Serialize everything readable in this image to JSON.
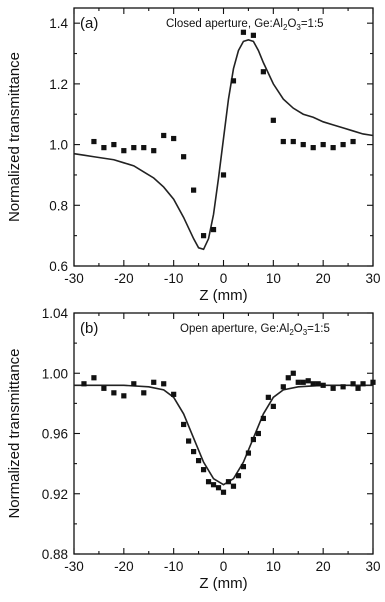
{
  "chart_data": [
    {
      "type": "scatter",
      "panel_label": "(a)",
      "annotation": "Closed aperture, Ge:Al",
      "annotation_sub1": "2",
      "annotation_mid": "O",
      "annotation_sub2": "3",
      "annotation_tail": "=1:5",
      "xlabel": "Z (mm)",
      "ylabel": "Normalized transmittance",
      "xlim": [
        -30,
        30
      ],
      "ylim": [
        0.6,
        1.45
      ],
      "xticks": [
        -30,
        -20,
        -10,
        0,
        10,
        20,
        30
      ],
      "yticks": [
        0.6,
        0.8,
        1.0,
        1.2,
        1.4
      ],
      "ytick_labels": [
        "0.6",
        "0.8",
        "1.0",
        "1.2",
        "1.4"
      ],
      "grid": false,
      "series": [
        {
          "kind": "points",
          "x": [
            -26,
            -24,
            -22,
            -20,
            -18,
            -16,
            -14,
            -12,
            -10,
            -8,
            -6,
            -4,
            -2,
            0,
            2,
            4,
            6,
            8,
            10,
            12,
            14,
            16,
            18,
            20,
            22,
            24,
            26
          ],
          "y": [
            1.01,
            0.99,
            1.0,
            0.98,
            0.99,
            0.99,
            0.98,
            1.03,
            1.02,
            0.96,
            0.85,
            0.7,
            0.72,
            0.9,
            1.21,
            1.37,
            1.36,
            1.24,
            1.08,
            1.01,
            1.01,
            1.0,
            0.99,
            1.0,
            0.99,
            1.0,
            1.01
          ]
        },
        {
          "kind": "fit",
          "x": [
            -30,
            -28,
            -26,
            -24,
            -22,
            -20,
            -18,
            -16,
            -14,
            -12,
            -10,
            -8,
            -6,
            -5,
            -4,
            -3,
            -2,
            -1,
            0,
            1,
            2,
            3,
            4,
            5,
            6,
            7,
            8,
            10,
            12,
            14,
            16,
            18,
            20,
            22,
            24,
            26,
            28,
            30
          ],
          "y": [
            0.97,
            0.965,
            0.96,
            0.955,
            0.95,
            0.94,
            0.93,
            0.91,
            0.89,
            0.86,
            0.82,
            0.76,
            0.69,
            0.66,
            0.655,
            0.69,
            0.77,
            0.89,
            1.02,
            1.15,
            1.25,
            1.31,
            1.34,
            1.345,
            1.34,
            1.31,
            1.27,
            1.2,
            1.15,
            1.12,
            1.1,
            1.09,
            1.075,
            1.065,
            1.055,
            1.045,
            1.035,
            1.03
          ]
        }
      ]
    },
    {
      "type": "scatter",
      "panel_label": "(b)",
      "annotation": "Open aperture, Ge:Al",
      "annotation_sub1": "2",
      "annotation_mid": "O",
      "annotation_sub2": "3",
      "annotation_tail": "=1:5",
      "xlabel": "Z (mm)",
      "ylabel": "Normalized transmittance",
      "xlim": [
        -30,
        30
      ],
      "ylim": [
        0.88,
        1.04
      ],
      "xticks": [
        -30,
        -20,
        -10,
        0,
        10,
        20,
        30
      ],
      "yticks": [
        0.88,
        0.92,
        0.96,
        1.0,
        1.04
      ],
      "ytick_labels": [
        "0.88",
        "0.92",
        "0.96",
        "1.00",
        "1.04"
      ],
      "grid": false,
      "series": [
        {
          "kind": "points",
          "x": [
            -28,
            -26,
            -24,
            -22,
            -20,
            -18,
            -16,
            -14,
            -12,
            -10,
            -8,
            -7,
            -6,
            -5,
            -4,
            -3,
            -2,
            0,
            2,
            3,
            4,
            5,
            6,
            7,
            8,
            10,
            12,
            14,
            16,
            18,
            20,
            22,
            24,
            26,
            28,
            30
          ],
          "y": [
            0.993,
            0.997,
            0.99,
            0.987,
            0.985,
            0.993,
            0.987,
            0.994,
            0.993,
            0.986,
            0.966,
            0.955,
            0.948,
            0.942,
            0.936,
            0.928,
            0.926,
            0.921,
            0.925,
            0.932,
            0.938,
            0.947,
            0.956,
            0.96,
            0.97,
            0.978,
            0.991,
            1.0,
            0.994,
            0.993,
            0.992,
            0.99,
            0.991,
            0.993,
            0.993,
            0.994
          ],
          "marker_extra": [
            [
              13,
              0.997
            ],
            [
              15,
              0.994
            ],
            [
              17,
              0.995
            ],
            [
              19,
              0.993
            ],
            [
              -1,
              0.924
            ],
            [
              1,
              0.928
            ],
            [
              9,
              0.984
            ],
            [
              27,
              0.99
            ]
          ]
        },
        {
          "kind": "fit",
          "x": [
            -30,
            -25,
            -20,
            -15,
            -12,
            -10,
            -8,
            -6,
            -4,
            -2,
            0,
            2,
            4,
            6,
            8,
            10,
            12,
            15,
            20,
            25,
            30
          ],
          "y": [
            0.992,
            0.992,
            0.992,
            0.991,
            0.989,
            0.984,
            0.973,
            0.957,
            0.941,
            0.93,
            0.926,
            0.93,
            0.941,
            0.957,
            0.973,
            0.984,
            0.989,
            0.991,
            0.992,
            0.992,
            0.992
          ]
        }
      ]
    }
  ]
}
